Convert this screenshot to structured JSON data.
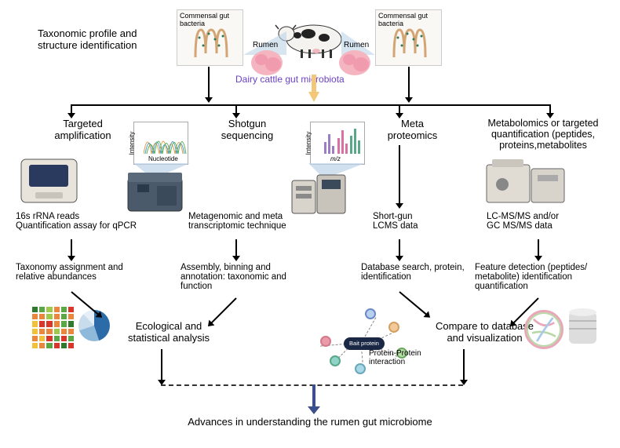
{
  "top_title": "Taxonomic profile and structure identification",
  "subtitle": "Dairy cattle gut microbiota",
  "gut_box_label": "Commensal gut bacteria",
  "rumen_label": "Rumen",
  "columns": {
    "c1": {
      "header": "Targeted amplification",
      "step1": "16s rRNA reads\nQuantification assay for qPCR",
      "step2": "Taxonomy assignment and relative abundances"
    },
    "c2": {
      "header": "Shotgun sequencing",
      "step1": "Metagenomic and meta transcriptomic technique",
      "step2": "Assembly, binning and annotation: taxonomic and function"
    },
    "c3": {
      "header": "Meta proteomics",
      "step1": "Short-gun\nLCMS data",
      "step2": "Database search, protein, identification"
    },
    "c4": {
      "header": "Metabolomics or targeted quantification (peptides, proteins,metabolites",
      "step1": "LC-MS/MS and/or\nGC MS/MS data",
      "step2": "Feature detection (peptides/ metabolite) identification quantification"
    }
  },
  "output1": "Ecological and statistical analysis",
  "output2": "Compare to database and visualization",
  "network": {
    "bait_label": "Bait protein",
    "caption": "Protein-Protein interaction"
  },
  "final": "Advances in understanding the rumen gut microbiome",
  "chart1": {
    "ylabel": "Intensity",
    "xlabel": "Nucleotide"
  },
  "chart2": {
    "ylabel": "Intensity",
    "xlabel": "m/z"
  },
  "colors": {
    "purple": "#6b42c7",
    "arrow_final": "#3b4f8c",
    "heatmap": [
      "#d9352b",
      "#e8873d",
      "#f2c13c",
      "#9ec94a",
      "#5aa746",
      "#2f7a2f"
    ],
    "pie": [
      "#2a6ba8",
      "#8fb9db",
      "#c9dcec",
      "#e6eff7"
    ],
    "nodes": [
      "#b9d0f0",
      "#f2c999",
      "#ea9aa8",
      "#8fd4c7",
      "#c9b8e8",
      "#f5e29a"
    ],
    "chord": [
      "#e8a8b8",
      "#b8d8a8",
      "#a8c8e8",
      "#e8d8a8"
    ]
  }
}
